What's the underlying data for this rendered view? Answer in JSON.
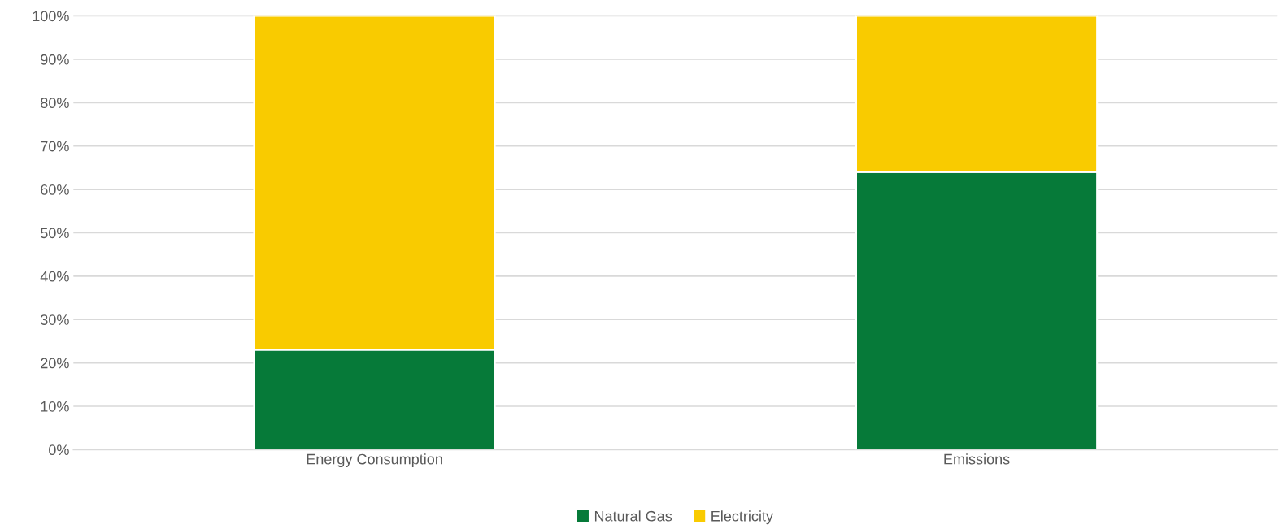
{
  "chart_data": {
    "type": "bar",
    "stacked": true,
    "categories": [
      "Energy Consumption",
      "Emissions"
    ],
    "series": [
      {
        "name": "Natural Gas",
        "color": "#067a39",
        "values": [
          23,
          64
        ]
      },
      {
        "name": "Electricity",
        "color": "#f9cb00",
        "values": [
          77,
          36
        ]
      }
    ],
    "ylim": [
      0,
      100
    ],
    "yticks": [
      {
        "value": 0,
        "label": "0%"
      },
      {
        "value": 10,
        "label": "10%"
      },
      {
        "value": 20,
        "label": "20%"
      },
      {
        "value": 30,
        "label": "30%"
      },
      {
        "value": 40,
        "label": "40%"
      },
      {
        "value": 50,
        "label": "50%"
      },
      {
        "value": 60,
        "label": "60%"
      },
      {
        "value": 70,
        "label": "70%"
      },
      {
        "value": 80,
        "label": "80%"
      },
      {
        "value": 90,
        "label": "90%"
      },
      {
        "value": 100,
        "label": "100%"
      }
    ],
    "grid": "y",
    "legend": "bottom"
  }
}
